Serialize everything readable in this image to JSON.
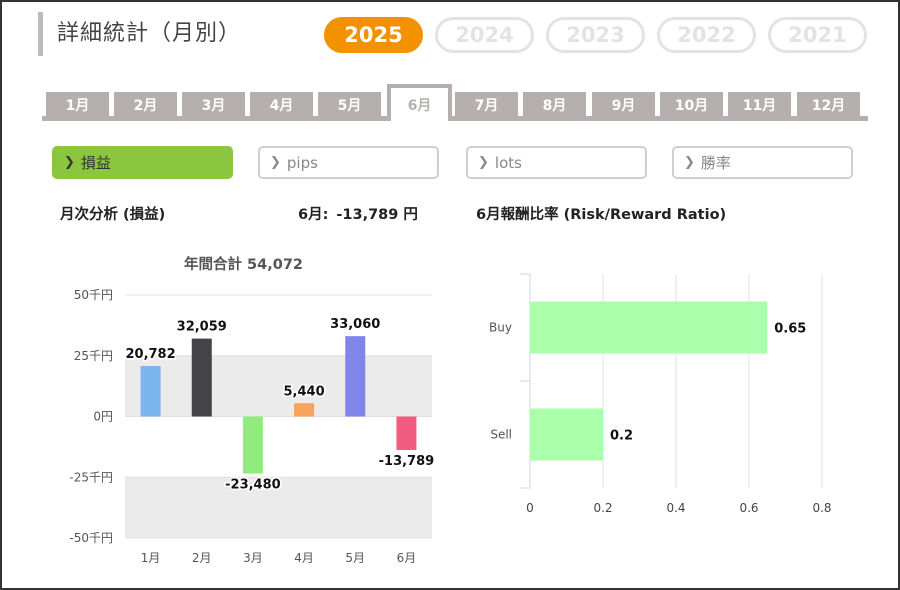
{
  "header": {
    "title": "詳細統計（月別）",
    "years": [
      "2025",
      "2024",
      "2023",
      "2022",
      "2021"
    ],
    "active_year": "2025"
  },
  "month_tabs": [
    "1月",
    "2月",
    "3月",
    "4月",
    "5月",
    "6月",
    "7月",
    "8月",
    "9月",
    "10月",
    "11月",
    "12月"
  ],
  "active_month_index": 5,
  "metric_buttons": [
    {
      "label": "損益",
      "icon": "chevron-right-icon",
      "active": true
    },
    {
      "label": "pips",
      "icon": "chevron-right-icon",
      "active": false
    },
    {
      "label": "lots",
      "icon": "chevron-right-icon",
      "active": false
    },
    {
      "label": "勝率",
      "icon": "chevron-right-icon",
      "active": false
    }
  ],
  "monthly_section": {
    "heading": "月次分析 (損益)",
    "month_label": "6月:",
    "month_value": "-13,789 円",
    "annual_total": "年間合計 54,072"
  },
  "rr_section": {
    "heading": "6月報酬比率 (Risk/Reward Ratio)"
  },
  "colors": {
    "accent_year": "#f39200",
    "active_metric": "#8cc63f",
    "tab": "#b5b0ad"
  },
  "chart_data": [
    {
      "type": "bar",
      "title": "年間合計 54,072",
      "categories": [
        "1月",
        "2月",
        "3月",
        "4月",
        "5月",
        "6月"
      ],
      "values": [
        20782,
        32059,
        -23480,
        5440,
        33060,
        -13789
      ],
      "value_labels": [
        "20,782",
        "32,059",
        "-23,480",
        "5,440",
        "33,060",
        "-13,789"
      ],
      "bar_colors": [
        "#7cb5ec",
        "#434348",
        "#90ed7d",
        "#f7a35c",
        "#8085e9",
        "#f15c80"
      ],
      "ylim": [
        -50000,
        50000
      ],
      "yticks": [
        50000,
        25000,
        0,
        -25000,
        -50000
      ],
      "ytick_labels": [
        "50千円",
        "25千円",
        "0円",
        "-25千円",
        "-50千円"
      ],
      "xlabel": "",
      "ylabel": ""
    },
    {
      "type": "bar",
      "orientation": "horizontal",
      "title": "6月報酬比率 (Risk/Reward Ratio)",
      "categories": [
        "Buy",
        "Sell"
      ],
      "values": [
        0.65,
        0.2
      ],
      "value_labels": [
        "0.65",
        "0.2"
      ],
      "bar_color": "#aaffaa",
      "xlim": [
        0,
        0.8
      ],
      "xticks": [
        0,
        0.2,
        0.4,
        0.6,
        0.8
      ],
      "xtick_labels": [
        "0",
        "0.2",
        "0.4",
        "0.6",
        "0.8"
      ],
      "grid": true
    }
  ]
}
